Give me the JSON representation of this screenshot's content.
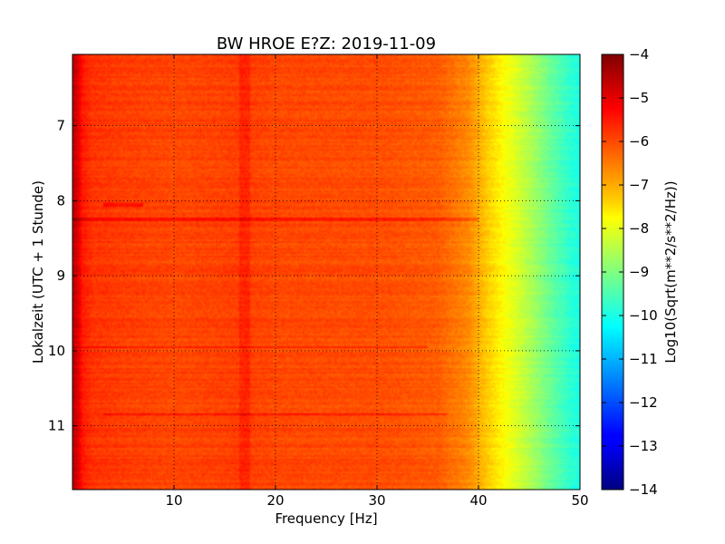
{
  "chart_data": {
    "type": "heatmap",
    "title": "BW HROE E?Z: 2019-11-09",
    "xlabel": "Frequency [Hz]",
    "ylabel": "Lokalzeit (UTC + 1 Stunde)",
    "xlim": [
      0,
      50
    ],
    "ylim": [
      6.05,
      11.85
    ],
    "y_inverted": true,
    "x_ticks": [
      10,
      20,
      30,
      40,
      50
    ],
    "x_tick_labels": [
      "10",
      "20",
      "30",
      "40",
      "50"
    ],
    "y_ticks": [
      7,
      8,
      9,
      10,
      11
    ],
    "y_tick_labels": [
      "7",
      "8",
      "9",
      "10",
      "11"
    ],
    "grid": true,
    "colormap": "jet",
    "colorbar": {
      "label": "Log10(Sqrt(m**2/s**2/Hz))",
      "range": [
        -14,
        -4
      ],
      "ticks": [
        -4,
        -5,
        -6,
        -7,
        -8,
        -9,
        -10,
        -11,
        -12,
        -13,
        -14
      ],
      "tick_labels": [
        "−4",
        "−5",
        "−6",
        "−7",
        "−8",
        "−9",
        "−10",
        "−11",
        "−12",
        "−13",
        "−14"
      ]
    },
    "spectral_profile": {
      "frequency_hz": [
        0,
        0.5,
        1,
        2,
        5,
        10,
        17,
        20,
        30,
        36,
        39,
        41,
        43,
        45,
        47,
        49,
        50
      ],
      "log10_amplitude": [
        -4.6,
        -4.9,
        -5.5,
        -5.75,
        -5.85,
        -5.95,
        -5.85,
        -5.95,
        -6.0,
        -6.15,
        -6.6,
        -7.3,
        -7.9,
        -8.5,
        -9.2,
        -9.8,
        -10.0
      ]
    },
    "features": [
      {
        "kind": "band",
        "frequency_hz": 17,
        "description": "persistent stronger line"
      },
      {
        "kind": "burst",
        "time": 8.05,
        "frequency_range_hz": [
          3,
          7
        ]
      },
      {
        "kind": "burst",
        "time": 8.25,
        "frequency_range_hz": [
          0,
          40
        ]
      },
      {
        "kind": "burst",
        "time": 9.95,
        "frequency_range_hz": [
          0,
          35
        ]
      },
      {
        "kind": "burst",
        "time": 10.85,
        "frequency_range_hz": [
          3,
          37
        ]
      }
    ]
  }
}
